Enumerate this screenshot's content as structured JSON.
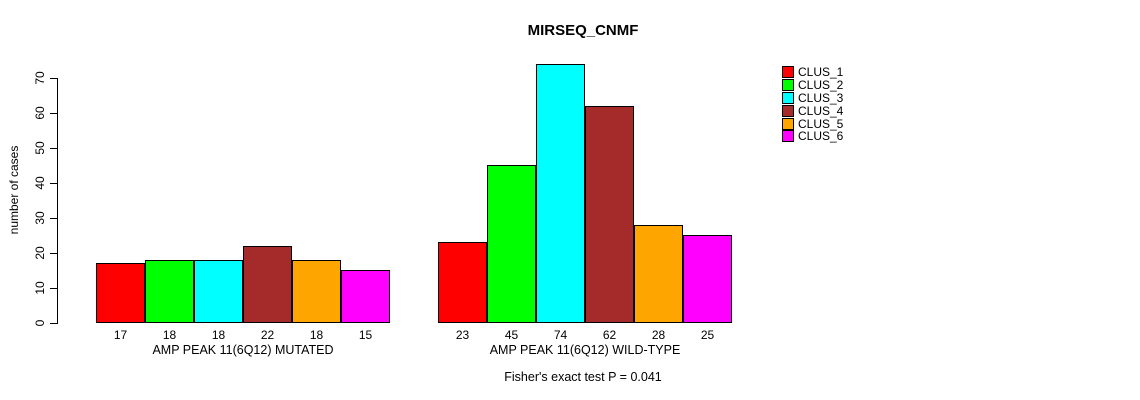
{
  "title": "MIRSEQ_CNMF",
  "chart_data": {
    "type": "bar",
    "title": "MIRSEQ_CNMF",
    "xlabel": "",
    "ylabel": "number of cases",
    "ylim": [
      0,
      74
    ],
    "yticks": [
      0,
      10,
      20,
      30,
      40,
      50,
      60,
      70
    ],
    "grid": false,
    "legend_position": "top-right-outside",
    "categories": [
      "AMP PEAK 11(6Q12) MUTATED",
      "AMP PEAK 11(6Q12) WILD-TYPE"
    ],
    "series": [
      {
        "name": "CLUS_1",
        "color": "#FF0000",
        "values": [
          17,
          23
        ]
      },
      {
        "name": "CLUS_2",
        "color": "#00FF00",
        "values": [
          18,
          45
        ]
      },
      {
        "name": "CLUS_3",
        "color": "#00FFFF",
        "values": [
          18,
          74
        ]
      },
      {
        "name": "CLUS_4",
        "color": "#A52A2A",
        "values": [
          22,
          62
        ]
      },
      {
        "name": "CLUS_5",
        "color": "#FFA500",
        "values": [
          18,
          28
        ]
      },
      {
        "name": "CLUS_6",
        "color": "#FF00FF",
        "values": [
          15,
          25
        ]
      }
    ],
    "bar_value_labels": [
      [
        17,
        18,
        18,
        22,
        18,
        15
      ],
      [
        23,
        45,
        74,
        62,
        28,
        25
      ]
    ],
    "annotation": "Fisher's exact test P = 0.041"
  },
  "legend": {
    "entries": [
      {
        "label": "CLUS_1",
        "color": "#FF0000"
      },
      {
        "label": "CLUS_2",
        "color": "#00FF00"
      },
      {
        "label": "CLUS_3",
        "color": "#00FFFF"
      },
      {
        "label": "CLUS_4",
        "color": "#A52A2A"
      },
      {
        "label": "CLUS_5",
        "color": "#FFA500"
      },
      {
        "label": "CLUS_6",
        "color": "#FF00FF"
      }
    ]
  }
}
